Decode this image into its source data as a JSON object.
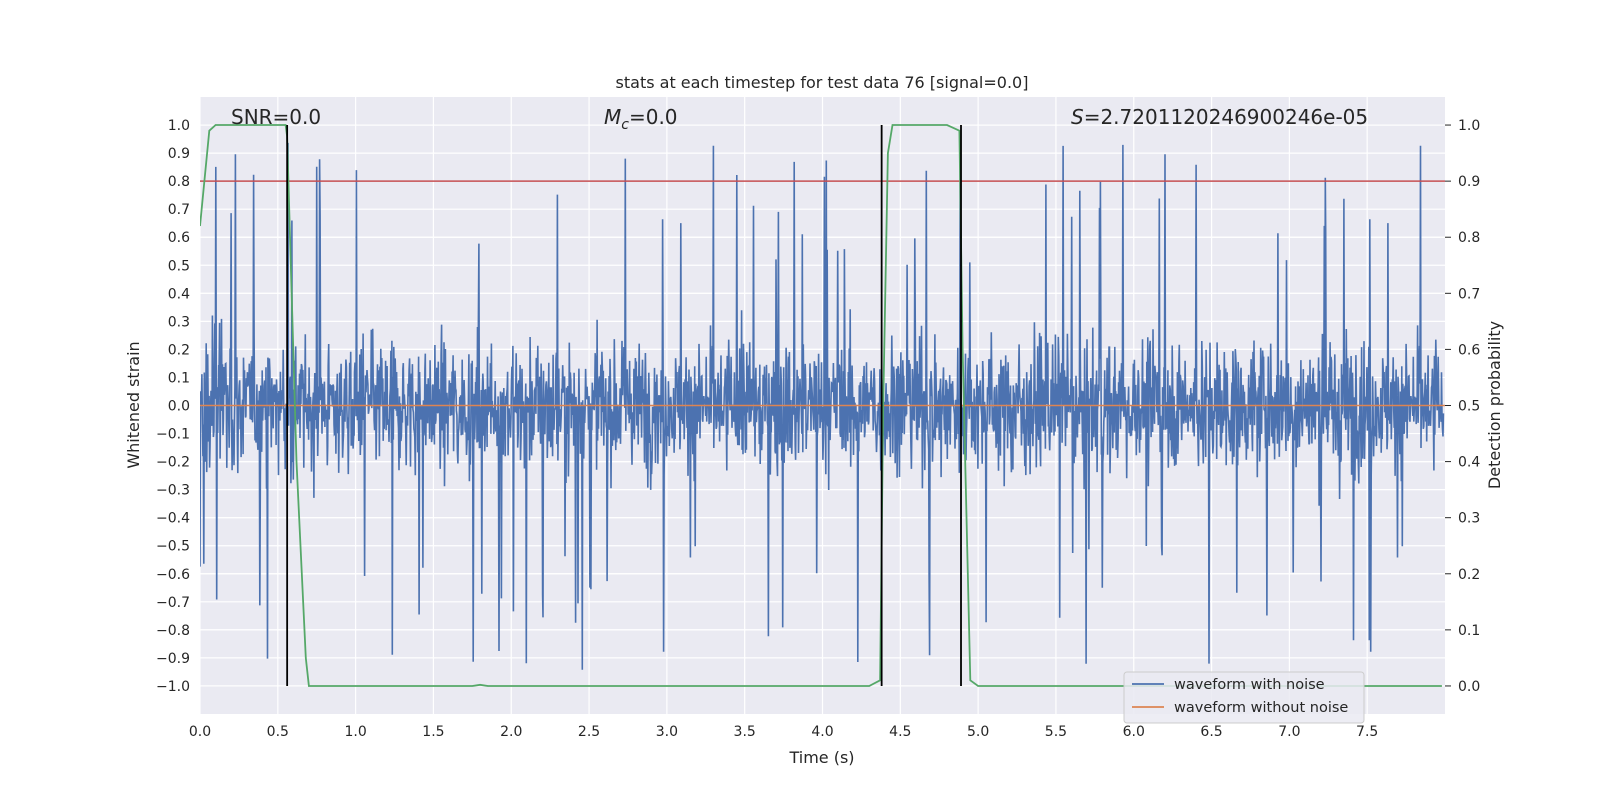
{
  "chart_data": {
    "type": "line",
    "title": "stats at each timestep for test data 76 [signal=0.0]",
    "xlabel": "Time (s)",
    "ylabel": "Whitened strain",
    "y2label": "Detection probability",
    "xlim": [
      0.0,
      8.0
    ],
    "ylim": [
      -1.1,
      1.1
    ],
    "y2lim": [
      -0.05,
      1.05
    ],
    "xticks": [
      0.0,
      0.5,
      1.0,
      1.5,
      2.0,
      2.5,
      3.0,
      3.5,
      4.0,
      4.5,
      5.0,
      5.5,
      6.0,
      6.5,
      7.0,
      7.5
    ],
    "yticks": [
      -1.0,
      -0.9,
      -0.8,
      -0.7,
      -0.6,
      -0.5,
      -0.4,
      -0.3,
      -0.2,
      -0.1,
      0.0,
      0.1,
      0.2,
      0.3,
      0.4,
      0.5,
      0.6,
      0.7,
      0.8,
      0.9,
      1.0
    ],
    "y2ticks": [
      0.0,
      0.1,
      0.2,
      0.3,
      0.4,
      0.5,
      0.6,
      0.7,
      0.8,
      0.9,
      1.0
    ],
    "grid": true,
    "annotations": {
      "snr": "SNR=0.0",
      "mc_symbol": "M",
      "mc_sub": "c",
      "mc_value": "=0.0",
      "s_symbol": "S",
      "s_value": "=2.7201120246900246e-05"
    },
    "series": [
      {
        "name": "waveform with noise",
        "color": "#4c72b0",
        "noise_envelope": {
          "typical_abs": 0.38,
          "peak_max": 0.98,
          "peak_min": -1.0
        }
      },
      {
        "name": "waveform without noise",
        "color": "#dd8452",
        "values_constant": 0.0
      },
      {
        "name": "detection probability",
        "color": "#55a868",
        "axis": "right",
        "x": [
          0.0,
          0.06,
          0.1,
          0.2,
          0.55,
          0.56,
          0.62,
          0.68,
          0.7,
          1.0,
          1.75,
          1.8,
          1.85,
          2.5,
          3.5,
          4.3,
          4.37,
          4.39,
          4.42,
          4.45,
          4.5,
          4.8,
          4.88,
          4.9,
          4.95,
          5.0,
          5.5,
          6.5,
          7.5,
          7.98
        ],
        "values": [
          0.82,
          0.99,
          1.0,
          1.0,
          1.0,
          0.98,
          0.4,
          0.05,
          0.0,
          0.0,
          0.0,
          0.002,
          0.0,
          0.0,
          0.0,
          0.0,
          0.01,
          0.5,
          0.95,
          1.0,
          1.0,
          1.0,
          0.99,
          0.6,
          0.01,
          0.0,
          0.0,
          0.0,
          0.0,
          0.0
        ]
      },
      {
        "name": "threshold",
        "color": "#c44e52",
        "axis": "right",
        "values_constant": 0.9
      },
      {
        "name": "detection markers",
        "color": "#000000",
        "axis": "right",
        "x": [
          0.56,
          4.38,
          4.89
        ],
        "range": [
          0.0,
          1.0
        ]
      }
    ]
  }
}
